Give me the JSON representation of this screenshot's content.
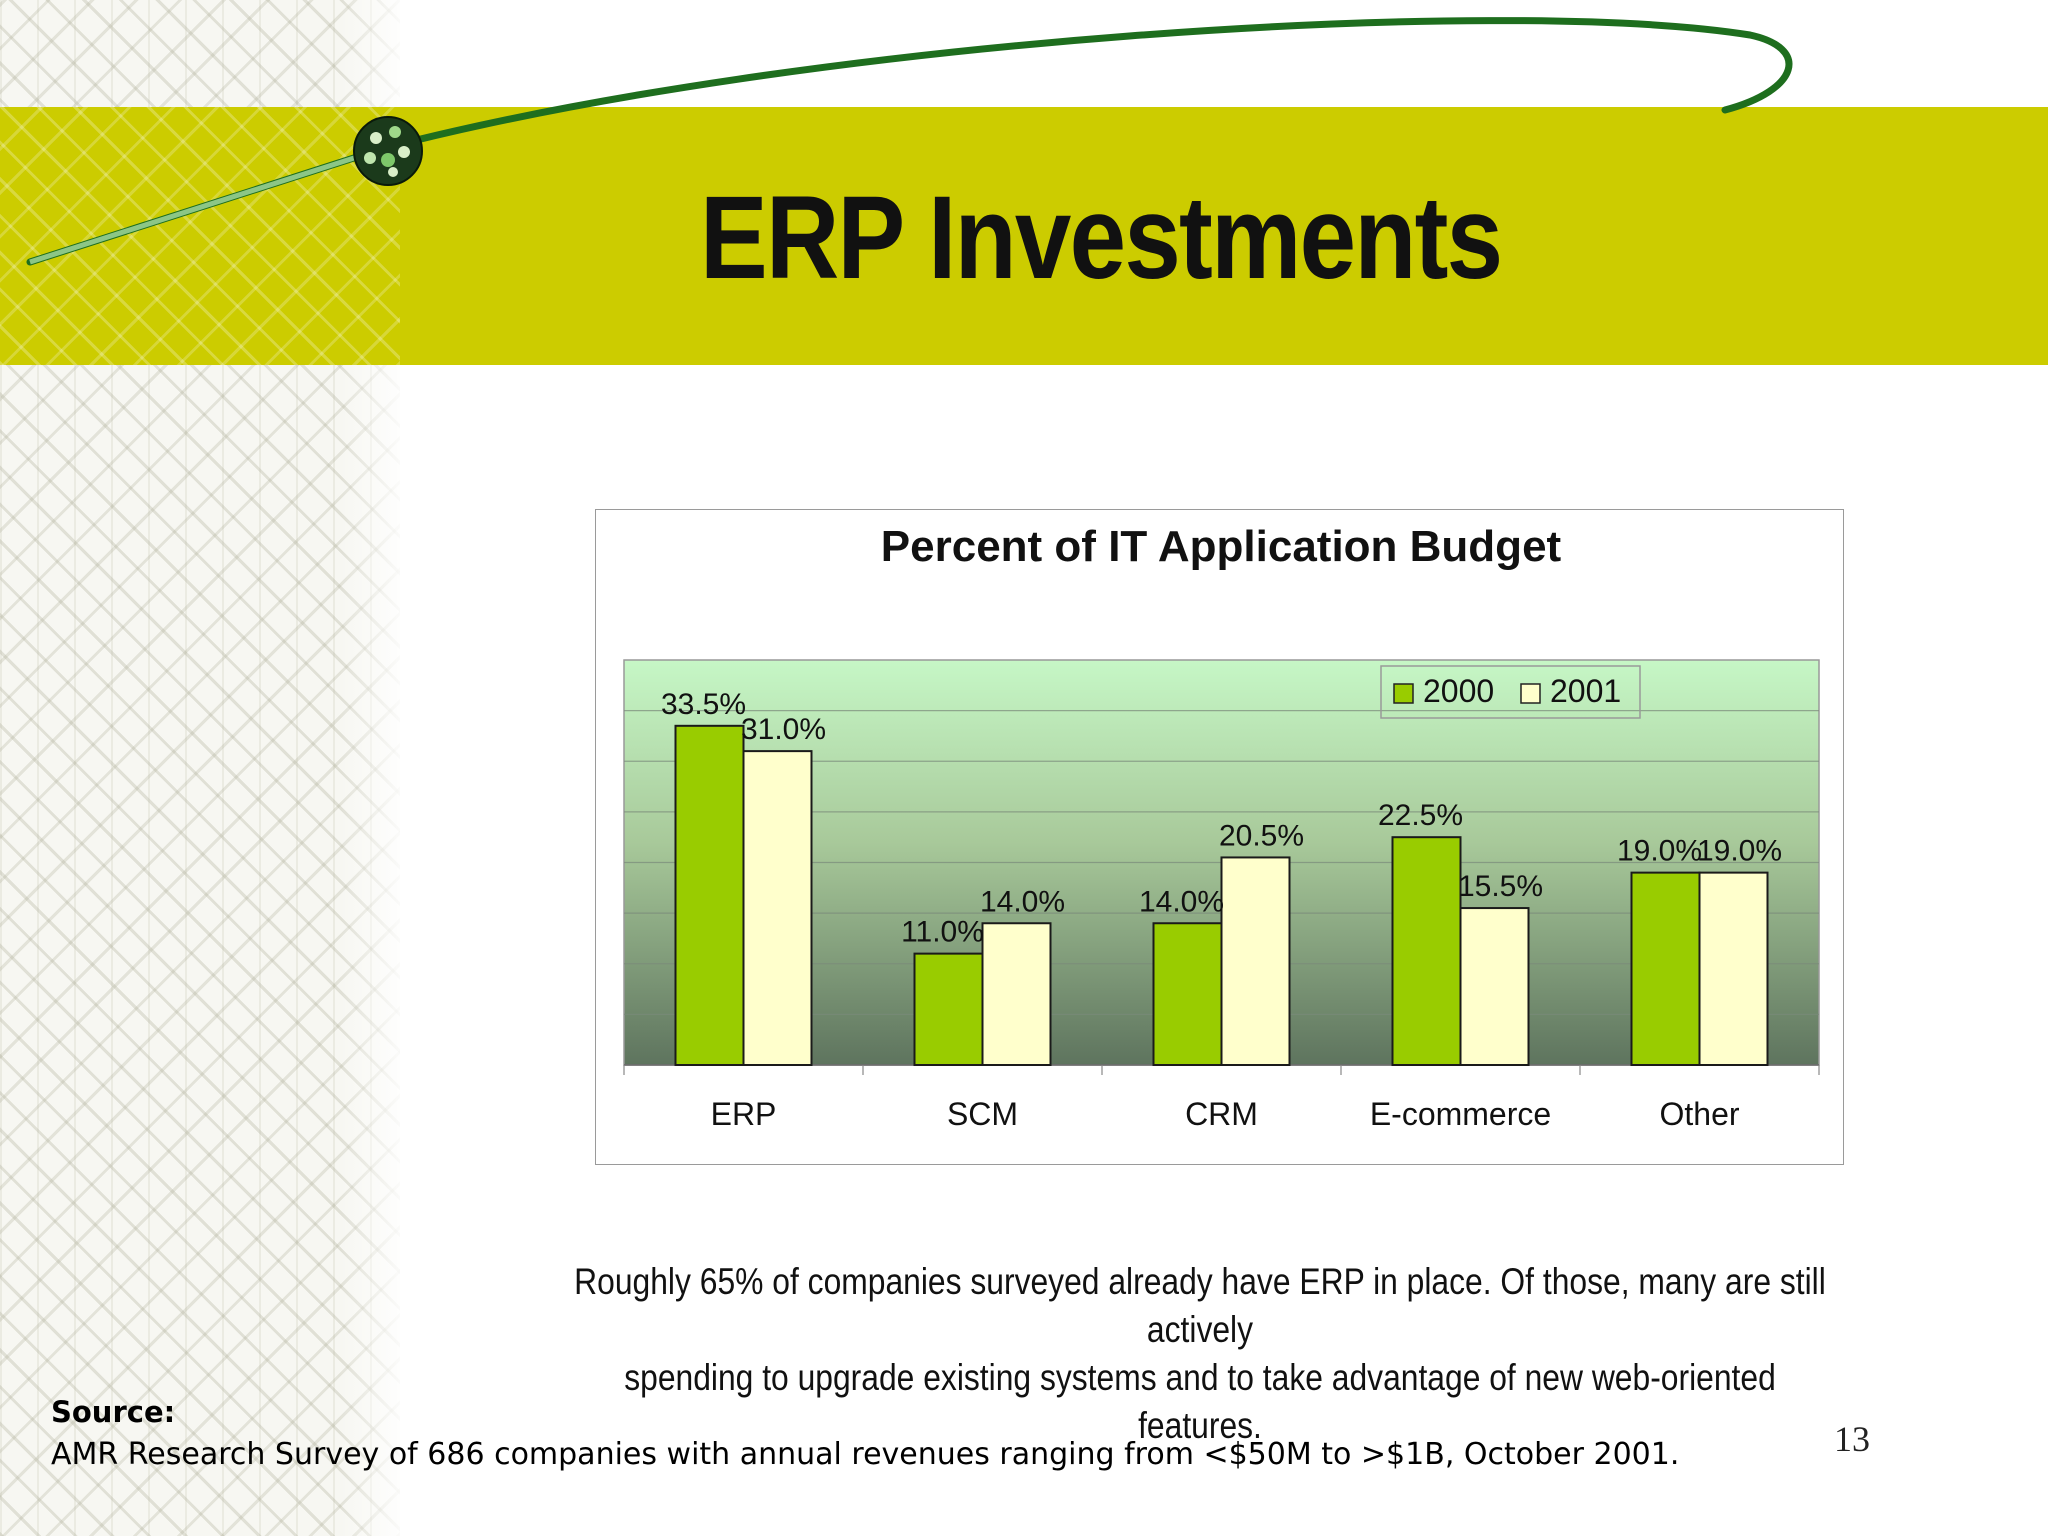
{
  "slide": {
    "title": "ERP Investments",
    "caption_line1": "Roughly 65% of companies surveyed already have ERP in place. Of those, many are still actively",
    "caption_line2": "spending to upgrade existing systems and to take advantage of new web-oriented features.",
    "source_label": "Source:",
    "source_text": "AMR Research Survey of 686 companies with annual revenues ranging from <$50M to >$1B, October 2001.",
    "page_number": "13",
    "colors": {
      "band": "#cccc00",
      "swoosh": "#1e6e1e",
      "series_2000": "#99cc00",
      "series_2001": "#ffffcc"
    }
  },
  "chart_data": {
    "type": "bar",
    "title": "Percent of IT Application Budget",
    "categories": [
      "ERP",
      "SCM",
      "CRM",
      "E-commerce",
      "Other"
    ],
    "series": [
      {
        "name": "2000",
        "values": [
          33.5,
          11.0,
          14.0,
          22.5,
          19.0
        ],
        "labels": [
          "33.5%",
          "11.0%",
          "14.0%",
          "22.5%",
          "19.0%"
        ]
      },
      {
        "name": "2001",
        "values": [
          31.0,
          14.0,
          20.5,
          15.5,
          19.0
        ],
        "labels": [
          "31.0%",
          "14.0%",
          "20.5%",
          "15.5%",
          "19.0%"
        ]
      }
    ],
    "ylim": [
      0,
      40
    ],
    "grid": true,
    "legend_position": "top-right"
  }
}
